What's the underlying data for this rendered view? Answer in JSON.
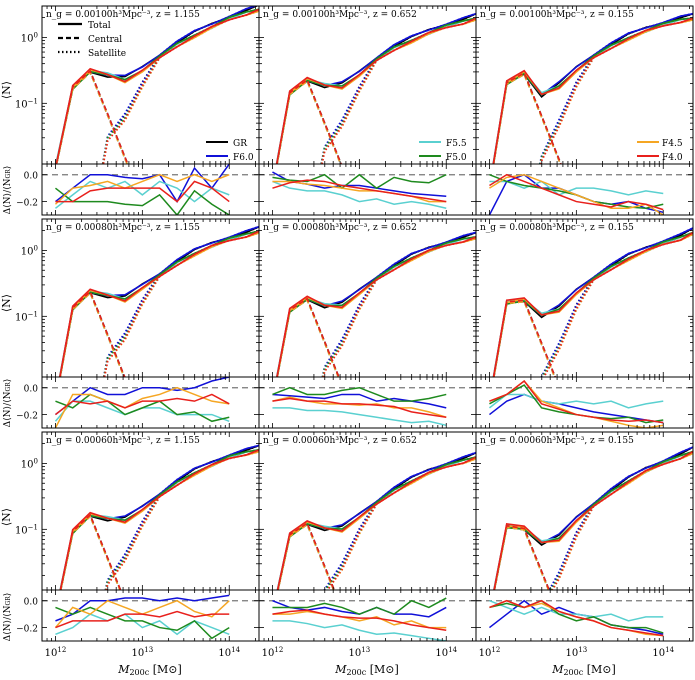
{
  "figure": {
    "xlabel": "M",
    "xlabel_sub": "200c",
    "xlabel_unit": " [M",
    "xlabel_unit_end": "]",
    "ylabel_top": "⟨N⟩",
    "ylabel_bottom": "Δ⟨N⟩/⟨N",
    "ylabel_bottom_sub": "GR",
    "ylabel_bottom_end": "⟩",
    "x_ticks": [
      "10",
      "10",
      "10"
    ],
    "x_tick_exps": [
      "12",
      "13",
      "14"
    ],
    "top_y_ticks_main": [
      "10",
      "10"
    ],
    "top_y_tick_exps": [
      "0",
      "−1"
    ],
    "bottom_y_ticks": [
      "0.0",
      "−0.2"
    ]
  },
  "legend_lines": {
    "items": [
      "Total",
      "Central",
      "Satellite"
    ]
  },
  "legend_models": {
    "col0": [
      {
        "name": "GR",
        "color": "#000000"
      },
      {
        "name": "F6.0",
        "color": "#1010d8"
      }
    ],
    "col1": [
      {
        "name": "F5.5",
        "color": "#5ad0d0"
      },
      {
        "name": "F5.0",
        "color": "#1e8a1e"
      }
    ],
    "col2": [
      {
        "name": "F4.5",
        "color": "#f5a623"
      },
      {
        "name": "F4.0",
        "color": "#e8201c"
      }
    ]
  },
  "panel_labels": [
    [
      "n_g = 0.00100h³Mpc⁻³, z = 1.155",
      "n_g = 0.00100h³Mpc⁻³, z = 0.652",
      "n_g = 0.00100h³Mpc⁻³, z = 0.155"
    ],
    [
      "n_g = 0.00080h³Mpc⁻³, z = 1.155",
      "n_g = 0.00080h³Mpc⁻³, z = 0.652",
      "n_g = 0.00080h³Mpc⁻³, z = 0.155"
    ],
    [
      "n_g = 0.00060h³Mpc⁻³, z = 1.155",
      "n_g = 0.00060h³Mpc⁻³, z = 0.652",
      "n_g = 0.00060h³Mpc⁻³, z = 0.155"
    ]
  ],
  "chart_data": {
    "type": "line",
    "xscale": "log",
    "xlim": [
      700000000000.0,
      220000000000000.0
    ],
    "ylim_top": [
      0.012,
      3
    ],
    "yscale_top": "log",
    "ylim_bottom": [
      -0.3,
      0.08
    ],
    "mass_bins": [
      1000000000000.0,
      1580000000000.0,
      2510000000000.0,
      3980000000000.0,
      6310000000000.0,
      10000000000000.0,
      15800000000000.0,
      25100000000000.0,
      39800000000000.0,
      63100000000000.0,
      100000000000000.0,
      158000000000000.0,
      220000000000000.0
    ],
    "models": [
      "GR",
      "F6.0",
      "F5.5",
      "F5.0",
      "F4.5",
      "F4.0"
    ],
    "colors": {
      "GR": "#000000",
      "F6.0": "#1010d8",
      "F5.5": "#5ad0d0",
      "F5.0": "#1e8a1e",
      "F4.5": "#f5a623",
      "F4.0": "#e8201c"
    },
    "panels": [
      {
        "row": 0,
        "col": 0,
        "ng": "0.00100",
        "z": "1.155",
        "total_GR": [
          0.01,
          0.17,
          0.3,
          0.26,
          0.25,
          0.35,
          0.55,
          0.85,
          1.2,
          1.6,
          2.1,
          2.6,
          3.0
        ],
        "total_model_scale": [
          1.0,
          1.05,
          1.0,
          0.98,
          0.97,
          0.95,
          0.9,
          0.88,
          0.85
        ],
        "delta": {
          "F6.0": [
            -0.2,
            -0.1,
            0.0,
            0.0,
            -0.02,
            -0.03,
            0.0,
            -0.2,
            0.05,
            -0.1,
            0.08
          ],
          "F5.5": [
            -0.25,
            -0.15,
            -0.05,
            -0.1,
            -0.05,
            -0.15,
            -0.05,
            -0.1,
            -0.2,
            -0.1,
            -0.15
          ],
          "F5.0": [
            -0.1,
            -0.2,
            -0.2,
            -0.2,
            -0.22,
            -0.23,
            -0.15,
            -0.3,
            -0.12,
            -0.22,
            -0.3
          ],
          "F4.5": [
            -0.22,
            -0.1,
            -0.08,
            -0.05,
            -0.1,
            -0.05,
            0.0,
            -0.05,
            0.0,
            -0.05,
            0.0
          ],
          "F4.0": [
            -0.2,
            -0.2,
            -0.12,
            -0.1,
            -0.1,
            -0.1,
            -0.1,
            -0.2,
            -0.05,
            -0.1,
            -0.2
          ]
        }
      },
      {
        "row": 0,
        "col": 1,
        "ng": "0.00100",
        "z": "0.652",
        "total_GR": [
          0.005,
          0.14,
          0.22,
          0.18,
          0.2,
          0.3,
          0.5,
          0.75,
          1.0,
          1.3,
          1.6,
          1.9,
          2.2
        ],
        "delta": {
          "F6.0": [
            0.02,
            -0.05,
            -0.07,
            -0.1,
            -0.08,
            -0.08,
            -0.1,
            -0.12,
            -0.14,
            -0.15,
            -0.16
          ],
          "F5.5": [
            -0.05,
            -0.1,
            -0.12,
            -0.12,
            -0.15,
            -0.2,
            -0.18,
            -0.22,
            -0.2,
            -0.22,
            -0.25
          ],
          "F5.0": [
            -0.02,
            -0.04,
            -0.05,
            0.0,
            -0.1,
            0.0,
            -0.1,
            -0.02,
            -0.05,
            -0.06,
            0.0
          ],
          "F4.5": [
            -0.05,
            -0.05,
            -0.07,
            -0.08,
            -0.1,
            -0.12,
            -0.12,
            -0.14,
            -0.16,
            -0.2,
            -0.2
          ],
          "F4.0": [
            -0.1,
            -0.06,
            -0.04,
            -0.05,
            -0.08,
            -0.1,
            -0.12,
            -0.14,
            -0.16,
            -0.18,
            -0.2
          ]
        }
      },
      {
        "row": 0,
        "col": 2,
        "ng": "0.00100",
        "z": "0.155",
        "total_GR": [
          0.005,
          0.2,
          0.28,
          0.13,
          0.2,
          0.35,
          0.55,
          0.8,
          1.1,
          1.4,
          1.7,
          2.0,
          2.2
        ],
        "delta": {
          "F6.0": [
            -0.3,
            -0.05,
            0.0,
            -0.1,
            -0.1,
            -0.15,
            -0.2,
            -0.22,
            -0.2,
            -0.25,
            -0.28
          ],
          "F5.5": [
            -0.05,
            -0.05,
            -0.1,
            -0.05,
            -0.15,
            -0.1,
            -0.1,
            -0.12,
            -0.15,
            -0.12,
            -0.14
          ],
          "F5.0": [
            0.0,
            -0.05,
            -0.08,
            -0.1,
            -0.12,
            -0.15,
            -0.2,
            -0.22,
            -0.24,
            -0.25,
            -0.22
          ],
          "F4.5": [
            -0.1,
            -0.02,
            0.0,
            -0.05,
            -0.1,
            -0.15,
            -0.2,
            -0.25,
            -0.25,
            -0.22,
            -0.3
          ],
          "F4.0": [
            -0.08,
            0.0,
            -0.05,
            -0.1,
            -0.15,
            -0.2,
            -0.22,
            -0.24,
            -0.2,
            -0.22,
            -0.26
          ]
        }
      },
      {
        "row": 1,
        "col": 0,
        "ng": "0.00080",
        "z": "1.155",
        "total_GR": [
          0.005,
          0.13,
          0.23,
          0.2,
          0.2,
          0.3,
          0.45,
          0.7,
          1.0,
          1.3,
          1.6,
          1.9,
          2.2
        ],
        "delta": {
          "F6.0": [
            -0.2,
            -0.1,
            0.0,
            -0.05,
            -0.05,
            0.0,
            0.0,
            -0.02,
            0.0,
            0.05,
            0.08
          ],
          "F5.5": [
            -0.25,
            -0.1,
            -0.1,
            -0.15,
            -0.2,
            -0.15,
            -0.15,
            -0.2,
            -0.2,
            -0.2,
            -0.25
          ],
          "F5.0": [
            -0.1,
            -0.15,
            -0.05,
            -0.1,
            -0.2,
            -0.15,
            -0.1,
            -0.2,
            -0.18,
            -0.25,
            -0.22
          ],
          "F4.5": [
            -0.3,
            -0.05,
            -0.05,
            -0.1,
            -0.15,
            -0.08,
            -0.05,
            0.0,
            -0.05,
            -0.1,
            -0.12
          ],
          "F4.0": [
            -0.2,
            -0.1,
            -0.12,
            -0.1,
            -0.15,
            -0.1,
            -0.1,
            -0.08,
            -0.1,
            -0.05,
            -0.12
          ]
        }
      },
      {
        "row": 1,
        "col": 1,
        "ng": "0.00080",
        "z": "0.652",
        "total_GR": [
          0.005,
          0.12,
          0.18,
          0.14,
          0.16,
          0.25,
          0.4,
          0.6,
          0.85,
          1.1,
          1.35,
          1.6,
          1.8
        ],
        "delta": {
          "F6.0": [
            -0.05,
            -0.06,
            -0.07,
            -0.08,
            -0.05,
            -0.05,
            -0.1,
            -0.08,
            -0.1,
            -0.12,
            -0.15
          ],
          "F5.5": [
            -0.15,
            -0.15,
            -0.17,
            -0.17,
            -0.18,
            -0.2,
            -0.22,
            -0.24,
            -0.26,
            -0.25,
            -0.28
          ],
          "F5.0": [
            -0.05,
            0.0,
            -0.05,
            -0.05,
            -0.02,
            0.0,
            -0.05,
            -0.1,
            -0.1,
            -0.08,
            -0.05
          ],
          "F4.5": [
            -0.1,
            -0.07,
            -0.1,
            -0.12,
            -0.12,
            -0.13,
            -0.12,
            -0.15,
            -0.15,
            -0.18,
            -0.22
          ],
          "F4.0": [
            -0.1,
            -0.08,
            -0.1,
            -0.1,
            -0.12,
            -0.12,
            -0.13,
            -0.14,
            -0.18,
            -0.2,
            -0.22
          ]
        }
      },
      {
        "row": 1,
        "col": 2,
        "ng": "0.00080",
        "z": "0.155",
        "total_GR": [
          0.005,
          0.16,
          0.17,
          0.1,
          0.14,
          0.25,
          0.4,
          0.6,
          0.85,
          1.1,
          1.4,
          1.7,
          2.1
        ],
        "delta": {
          "F6.0": [
            -0.2,
            -0.1,
            -0.05,
            -0.1,
            -0.12,
            -0.15,
            -0.18,
            -0.2,
            -0.22,
            -0.24,
            -0.26
          ],
          "F5.5": [
            -0.15,
            -0.05,
            -0.05,
            -0.1,
            -0.12,
            -0.1,
            -0.12,
            -0.1,
            -0.15,
            -0.12,
            -0.1
          ],
          "F5.0": [
            -0.12,
            -0.05,
            0.02,
            -0.15,
            -0.18,
            -0.2,
            -0.22,
            -0.23,
            -0.22,
            -0.26,
            -0.24
          ],
          "F4.5": [
            -0.1,
            -0.05,
            0.05,
            -0.1,
            -0.15,
            -0.2,
            -0.22,
            -0.25,
            -0.28,
            -0.3,
            -0.28
          ],
          "F4.0": [
            -0.1,
            -0.05,
            0.05,
            -0.12,
            -0.16,
            -0.2,
            -0.22,
            -0.24,
            -0.25,
            -0.24,
            -0.26
          ]
        }
      },
      {
        "row": 2,
        "col": 0,
        "ng": "0.00060",
        "z": "1.155",
        "total_GR": [
          0.005,
          0.09,
          0.16,
          0.14,
          0.15,
          0.22,
          0.35,
          0.55,
          0.8,
          1.05,
          1.35,
          1.6,
          1.8
        ],
        "delta": {
          "F6.0": [
            -0.15,
            -0.1,
            0.0,
            0.0,
            0.02,
            0.02,
            0.0,
            0.02,
            0.0,
            0.02,
            0.04
          ],
          "F5.5": [
            -0.25,
            -0.2,
            -0.1,
            -0.15,
            -0.1,
            -0.2,
            -0.15,
            -0.25,
            -0.15,
            -0.2,
            -0.25
          ],
          "F5.0": [
            -0.05,
            -0.1,
            -0.05,
            -0.1,
            -0.15,
            -0.15,
            -0.2,
            -0.22,
            -0.15,
            -0.28,
            -0.2
          ],
          "F4.5": [
            -0.2,
            -0.05,
            -0.1,
            0.0,
            -0.05,
            -0.1,
            -0.05,
            0.0,
            -0.08,
            -0.12,
            0.0
          ],
          "F4.0": [
            -0.2,
            -0.15,
            -0.15,
            -0.15,
            -0.1,
            -0.1,
            -0.12,
            -0.08,
            -0.12,
            -0.1,
            -0.1
          ]
        }
      },
      {
        "row": 2,
        "col": 1,
        "ng": "0.00060",
        "z": "0.652",
        "total_GR": [
          0.005,
          0.08,
          0.12,
          0.1,
          0.11,
          0.17,
          0.27,
          0.42,
          0.6,
          0.8,
          1.0,
          1.2,
          1.4
        ],
        "delta": {
          "F6.0": [
            0.0,
            -0.05,
            -0.07,
            -0.05,
            -0.08,
            -0.1,
            -0.05,
            -0.1,
            -0.1,
            -0.12,
            -0.05
          ],
          "F5.5": [
            -0.15,
            -0.15,
            -0.17,
            -0.2,
            -0.18,
            -0.22,
            -0.25,
            -0.24,
            -0.26,
            -0.28,
            -0.3
          ],
          "F5.0": [
            -0.05,
            -0.05,
            -0.05,
            -0.02,
            -0.05,
            -0.1,
            -0.05,
            -0.1,
            0.0,
            -0.05,
            0.02
          ],
          "F4.5": [
            -0.1,
            -0.1,
            -0.08,
            -0.1,
            -0.12,
            -0.15,
            -0.12,
            -0.18,
            -0.15,
            -0.2,
            -0.2
          ],
          "F4.0": [
            -0.1,
            -0.08,
            -0.07,
            -0.1,
            -0.12,
            -0.13,
            -0.13,
            -0.15,
            -0.18,
            -0.2,
            -0.22
          ]
        }
      },
      {
        "row": 2,
        "col": 2,
        "ng": "0.00060",
        "z": "0.155",
        "total_GR": [
          0.005,
          0.11,
          0.1,
          0.06,
          0.08,
          0.15,
          0.25,
          0.4,
          0.6,
          0.85,
          1.1,
          1.4,
          1.7
        ],
        "delta": {
          "F6.0": [
            -0.2,
            -0.1,
            0.0,
            -0.1,
            -0.05,
            -0.1,
            -0.12,
            -0.18,
            -0.2,
            -0.22,
            -0.25
          ],
          "F5.5": [
            0.0,
            -0.05,
            -0.1,
            -0.05,
            -0.1,
            -0.1,
            -0.12,
            -0.1,
            -0.15,
            -0.12,
            -0.12
          ],
          "F5.0": [
            -0.05,
            -0.02,
            -0.05,
            0.0,
            -0.1,
            -0.15,
            -0.12,
            -0.18,
            -0.2,
            -0.2,
            -0.24
          ],
          "F4.5": [
            -0.05,
            0.0,
            -0.05,
            -0.02,
            -0.08,
            -0.12,
            -0.15,
            -0.2,
            -0.22,
            -0.25,
            -0.26
          ],
          "F4.0": [
            -0.05,
            0.0,
            -0.05,
            0.0,
            -0.08,
            -0.12,
            -0.15,
            -0.2,
            -0.22,
            -0.24,
            -0.26
          ]
        }
      }
    ]
  }
}
